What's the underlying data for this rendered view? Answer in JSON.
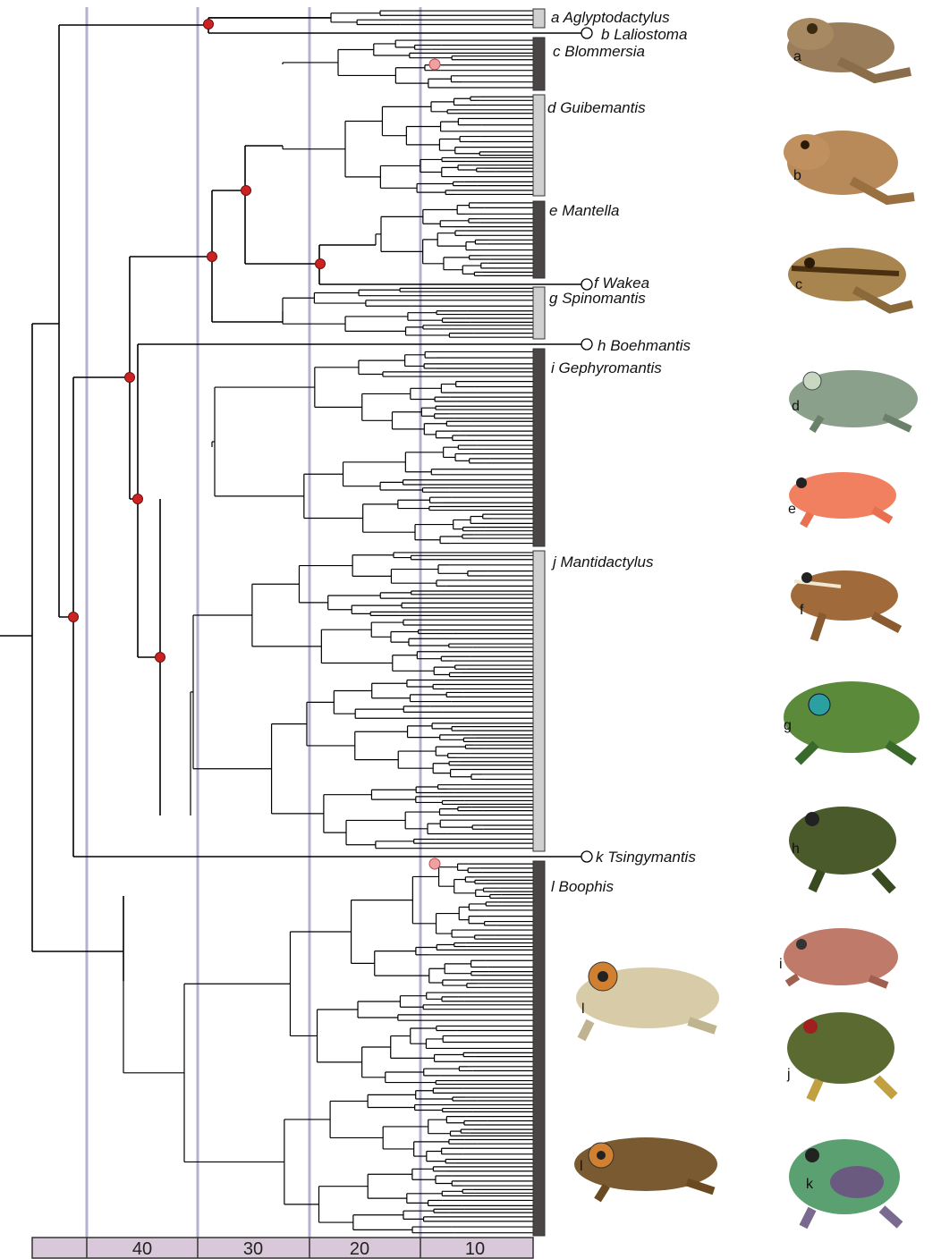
{
  "clades": [
    {
      "id": "a",
      "letter": "a",
      "name": "Aglyptodactylus",
      "bar": "light"
    },
    {
      "id": "b",
      "letter": "b",
      "name": "Laliostoma",
      "bar": "none"
    },
    {
      "id": "c",
      "letter": "c",
      "name": "Blommersia",
      "bar": "dark"
    },
    {
      "id": "d",
      "letter": "d",
      "name": "Guibemantis",
      "bar": "light"
    },
    {
      "id": "e",
      "letter": "e",
      "name": "Mantella",
      "bar": "dark"
    },
    {
      "id": "f",
      "letter": "f",
      "name": "Wakea",
      "bar": "none"
    },
    {
      "id": "g",
      "letter": "g",
      "name": "Spinomantis",
      "bar": "light"
    },
    {
      "id": "h",
      "letter": "h",
      "name": "Boehmantis",
      "bar": "none"
    },
    {
      "id": "i",
      "letter": "i",
      "name": "Gephyromantis",
      "bar": "dark"
    },
    {
      "id": "j",
      "letter": "j",
      "name": "Mantidactylus",
      "bar": "light"
    },
    {
      "id": "k",
      "letter": "k",
      "name": "Tsingymantis",
      "bar": "none"
    },
    {
      "id": "l",
      "letter": "l",
      "name": "Boophis",
      "bar": "dark"
    }
  ],
  "time_axis": {
    "ticks": [
      "40",
      "30",
      "20",
      "10"
    ],
    "gridline_color": "#b3b3d1",
    "band_color": "#d9c8d9"
  },
  "photo_labels": [
    "a",
    "b",
    "c",
    "d",
    "e",
    "f",
    "g",
    "h",
    "i",
    "j",
    "k",
    "l",
    "l"
  ],
  "colors": {
    "node_red": "#cc2222",
    "node_pink": "#f0a0a0",
    "bar_dark": "#4a4646",
    "bar_light": "#d0d0d0",
    "branch": "#000000"
  }
}
